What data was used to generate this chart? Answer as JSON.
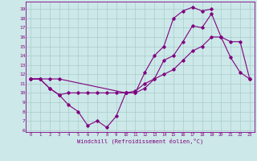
{
  "background_color": "#cce8e8",
  "line_color": "#800080",
  "grid_color": "#aacccc",
  "xlabel": "Windchill (Refroidissement éolien,°C)",
  "xlim": [
    -0.5,
    23.5
  ],
  "ylim": [
    5.8,
    19.8
  ],
  "yticks": [
    6,
    7,
    8,
    9,
    10,
    11,
    12,
    13,
    14,
    15,
    16,
    17,
    18,
    19
  ],
  "xticks": [
    0,
    1,
    2,
    3,
    4,
    5,
    6,
    7,
    8,
    9,
    10,
    11,
    12,
    13,
    14,
    15,
    16,
    17,
    18,
    19,
    20,
    21,
    22,
    23
  ],
  "line1_x": [
    0,
    1,
    2,
    3,
    4,
    5,
    6,
    7,
    8,
    9,
    10,
    11,
    12,
    13,
    14,
    15,
    16,
    17,
    18,
    19
  ],
  "line1_y": [
    11.5,
    11.5,
    10.5,
    9.8,
    8.7,
    8.0,
    6.5,
    7.0,
    6.3,
    7.5,
    10.0,
    10.0,
    12.2,
    14.0,
    15.0,
    18.0,
    18.8,
    19.2,
    18.8,
    19.0
  ],
  "line2_x": [
    0,
    2,
    3,
    10,
    11,
    12,
    13,
    14,
    15,
    16,
    17,
    18,
    19,
    20,
    21,
    22,
    23
  ],
  "line2_y": [
    11.5,
    11.5,
    11.5,
    10.0,
    10.0,
    10.5,
    11.5,
    13.5,
    14.0,
    15.5,
    17.2,
    17.0,
    18.5,
    16.0,
    13.8,
    12.2,
    11.5
  ],
  "line3_x": [
    0,
    1,
    2,
    3,
    4,
    5,
    6,
    7,
    8,
    9,
    10,
    11,
    12,
    13,
    14,
    15,
    16,
    17,
    18,
    19,
    20,
    21,
    22,
    23
  ],
  "line3_y": [
    11.5,
    11.5,
    10.5,
    9.8,
    10.0,
    10.0,
    10.0,
    10.0,
    10.0,
    10.0,
    10.0,
    10.2,
    11.0,
    11.5,
    12.0,
    12.5,
    13.5,
    14.5,
    15.0,
    16.0,
    16.0,
    15.5,
    15.5,
    11.5
  ]
}
